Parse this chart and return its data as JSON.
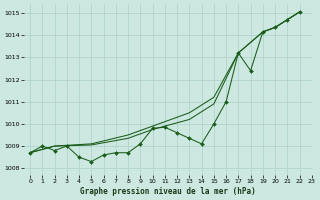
{
  "title": "Graphe pression niveau de la mer (hPa)",
  "background_color": "#cce8e0",
  "grid_color": "#b0d4cc",
  "line_color": "#1a5c1a",
  "xlim": [
    -0.5,
    23
  ],
  "ylim": [
    1007.7,
    1015.4
  ],
  "yticks": [
    1008,
    1009,
    1010,
    1011,
    1012,
    1013,
    1014,
    1015
  ],
  "xticks": [
    0,
    1,
    2,
    3,
    4,
    5,
    6,
    7,
    8,
    9,
    10,
    11,
    12,
    13,
    14,
    15,
    16,
    17,
    18,
    19,
    20,
    21,
    22,
    23
  ],
  "marker_x": [
    0,
    1,
    2,
    3,
    4,
    5,
    6,
    7,
    8,
    9,
    10,
    11,
    12,
    13,
    14,
    15,
    16,
    17,
    18,
    19,
    20,
    21,
    22
  ],
  "marker_y": [
    1008.7,
    1009.0,
    1008.8,
    1009.0,
    1008.5,
    1008.3,
    1008.6,
    1008.7,
    1008.7,
    1009.1,
    1009.8,
    1009.85,
    1009.6,
    1009.35,
    1009.1,
    1010.0,
    1011.0,
    1013.2,
    1012.4,
    1014.15,
    1014.35,
    1014.7,
    1015.05
  ],
  "trend1_x": [
    0,
    2,
    5,
    8,
    10,
    13,
    15,
    17,
    19,
    20,
    21,
    22
  ],
  "trend1_y": [
    1008.7,
    1009.0,
    1009.1,
    1009.5,
    1009.9,
    1010.5,
    1011.2,
    1013.2,
    1014.15,
    1014.35,
    1014.7,
    1015.05
  ],
  "trend2_x": [
    0,
    2,
    5,
    8,
    10,
    13,
    15,
    17,
    19,
    20,
    21,
    22
  ],
  "trend2_y": [
    1008.7,
    1009.0,
    1009.05,
    1009.35,
    1009.75,
    1010.2,
    1010.9,
    1013.2,
    1014.15,
    1014.35,
    1014.7,
    1015.05
  ]
}
